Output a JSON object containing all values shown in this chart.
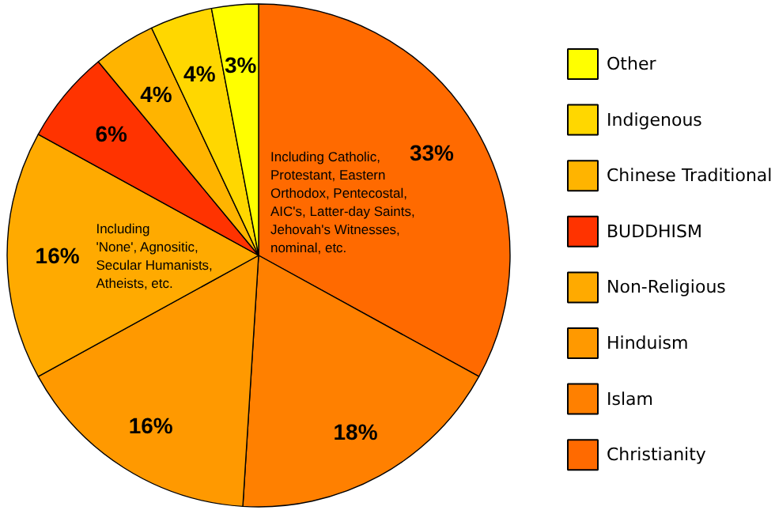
{
  "chart_data": {
    "type": "pie",
    "categories": [
      "Christianity",
      "Islam",
      "Hinduism",
      "Non-Religious",
      "BUDDHISM",
      "Chinese Traditional",
      "Indigenous",
      "Other"
    ],
    "values": [
      33,
      18,
      16,
      16,
      6,
      4,
      4,
      3
    ],
    "colors": [
      "#ff6a00",
      "#ff8000",
      "#ff9900",
      "#ffaa00",
      "#ff3300",
      "#ffb400",
      "#ffd700",
      "#ffff00"
    ],
    "value_labels": [
      "33%",
      "18%",
      "16%",
      "16%",
      "6%",
      "4%",
      "4%",
      "3%"
    ],
    "annotations": [
      {
        "text": "Including Catholic,\nProtestant, Eastern\nOrthodox, Pentecostal,\nAIC's, Latter-day Saints,\nJehovah's Witnesses,\nnominal, etc.",
        "x": "Christianity"
      },
      {
        "text": "Including\n'None', Agnositic,\nSecular Humanists,\nAtheists, etc.",
        "x": "Non-Religious"
      }
    ],
    "legend": "right"
  }
}
